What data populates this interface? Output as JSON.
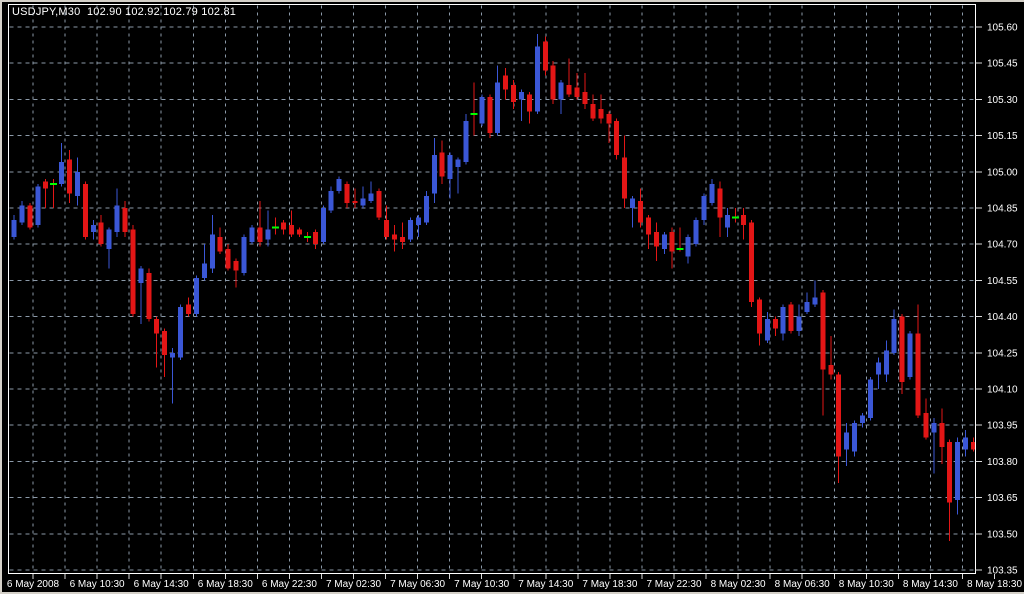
{
  "window": {
    "title": "USDJPY,M30  102.90 102.92 102.79 102.81"
  },
  "chart_data": {
    "type": "candlestick",
    "symbol": "USDJPY",
    "timeframe": "M30",
    "title": "USDJPY,M30  102.90 102.92 102.79 102.81",
    "quote": {
      "open": "102.90",
      "high": "102.92",
      "low": "102.79",
      "close": "102.81"
    },
    "legend_position": "none",
    "grid": true,
    "x_axis": {
      "labels": [
        "6 May 2008",
        "6 May 10:30",
        "6 May 14:30",
        "6 May 18:30",
        "6 May 22:30",
        "7 May 02:30",
        "7 May 06:30",
        "7 May 10:30",
        "7 May 14:30",
        "7 May 18:30",
        "7 May 22:30",
        "8 May 02:30",
        "8 May 06:30",
        "8 May 10:30",
        "8 May 14:30",
        "8 May 18:30"
      ]
    },
    "y_axis": {
      "tick_labels": [
        "105.60",
        "105.45",
        "105.30",
        "105.15",
        "105.00",
        "104.85",
        "104.70",
        "104.55",
        "104.40",
        "104.25",
        "104.10",
        "103.95",
        "103.80",
        "103.65",
        "103.50",
        "103.35"
      ],
      "top_tick": 105.6,
      "tick_step": 0.15,
      "visible_range": [
        103.34,
        105.69
      ]
    },
    "colors": {
      "background": "#000000",
      "bull": "#3B57D6",
      "bear": "#E31616",
      "doji_line": "#00FF00",
      "grid": "#8C9AA9",
      "frame": "#FFFFFF",
      "tick": "#D9D9D9",
      "text": "#FFFFFF",
      "window_border": "#D4D0C8"
    },
    "candles": [
      [
        104.73,
        104.82,
        104.72,
        104.8
      ],
      [
        104.79,
        104.88,
        104.78,
        104.86
      ],
      [
        104.86,
        104.87,
        104.76,
        104.77
      ],
      [
        104.78,
        104.95,
        104.77,
        104.94
      ],
      [
        104.96,
        104.97,
        104.85,
        104.93
      ],
      [
        104.95,
        104.97,
        104.85,
        104.95
      ],
      [
        104.95,
        105.12,
        104.94,
        105.04
      ],
      [
        105.05,
        105.09,
        104.87,
        104.91
      ],
      [
        104.9,
        105.06,
        104.86,
        105.0
      ],
      [
        104.95,
        104.96,
        104.72,
        104.73
      ],
      [
        104.75,
        104.8,
        104.72,
        104.78
      ],
      [
        104.79,
        104.82,
        104.69,
        104.7
      ],
      [
        104.68,
        104.77,
        104.6,
        104.76
      ],
      [
        104.75,
        104.93,
        104.73,
        104.86
      ],
      [
        104.85,
        104.88,
        104.73,
        104.75
      ],
      [
        104.76,
        104.78,
        104.4,
        104.41
      ],
      [
        104.54,
        104.61,
        104.37,
        104.6
      ],
      [
        104.58,
        104.6,
        104.38,
        104.39
      ],
      [
        104.39,
        104.4,
        104.19,
        104.33
      ],
      [
        104.34,
        104.35,
        104.15,
        104.24
      ],
      [
        104.23,
        104.27,
        104.04,
        104.25
      ],
      [
        104.23,
        104.45,
        104.22,
        104.44
      ],
      [
        104.45,
        104.48,
        104.4,
        104.41
      ],
      [
        104.41,
        104.57,
        104.4,
        104.56
      ],
      [
        104.56,
        104.7,
        104.55,
        104.62
      ],
      [
        104.6,
        104.82,
        104.58,
        104.74
      ],
      [
        104.73,
        104.77,
        104.66,
        104.67
      ],
      [
        104.68,
        104.7,
        104.59,
        104.6
      ],
      [
        104.63,
        104.64,
        104.52,
        104.59
      ],
      [
        104.58,
        104.74,
        104.57,
        104.73
      ],
      [
        104.71,
        104.78,
        104.7,
        104.77
      ],
      [
        104.77,
        104.88,
        104.69,
        104.71
      ],
      [
        104.72,
        104.84,
        104.69,
        104.76
      ],
      [
        104.77,
        104.81,
        104.74,
        104.77
      ],
      [
        104.79,
        104.8,
        104.74,
        104.76
      ],
      [
        104.78,
        104.84,
        104.73,
        104.74
      ],
      [
        104.76,
        104.77,
        104.73,
        104.74
      ],
      [
        104.73,
        104.75,
        104.71,
        104.73
      ],
      [
        104.75,
        104.76,
        104.68,
        104.7
      ],
      [
        104.71,
        104.86,
        104.7,
        104.85
      ],
      [
        104.84,
        104.94,
        104.83,
        104.92
      ],
      [
        104.92,
        104.98,
        104.91,
        104.97
      ],
      [
        104.95,
        104.96,
        104.85,
        104.87
      ],
      [
        104.88,
        104.93,
        104.85,
        104.87
      ],
      [
        104.86,
        104.94,
        104.85,
        104.89
      ],
      [
        104.88,
        104.96,
        104.87,
        104.91
      ],
      [
        104.92,
        104.93,
        104.8,
        104.81
      ],
      [
        104.8,
        104.86,
        104.72,
        104.73
      ],
      [
        104.74,
        104.78,
        104.67,
        104.72
      ],
      [
        104.73,
        104.79,
        104.68,
        104.71
      ],
      [
        104.72,
        104.81,
        104.71,
        104.8
      ],
      [
        104.78,
        104.82,
        104.73,
        104.81
      ],
      [
        104.79,
        104.92,
        104.78,
        104.9
      ],
      [
        104.91,
        105.14,
        104.87,
        105.07
      ],
      [
        105.08,
        105.13,
        104.95,
        104.98
      ],
      [
        104.97,
        105.08,
        104.89,
        105.07
      ],
      [
        105.02,
        105.06,
        104.91,
        105.05
      ],
      [
        105.04,
        105.24,
        105.03,
        105.21
      ],
      [
        105.24,
        105.37,
        105.15,
        105.24
      ],
      [
        105.2,
        105.32,
        105.19,
        105.31
      ],
      [
        105.31,
        105.32,
        105.14,
        105.16
      ],
      [
        105.16,
        105.44,
        105.15,
        105.37
      ],
      [
        105.4,
        105.43,
        105.3,
        105.34
      ],
      [
        105.36,
        105.38,
        105.26,
        105.29
      ],
      [
        105.3,
        105.34,
        105.21,
        105.33
      ],
      [
        105.32,
        105.33,
        105.2,
        105.25
      ],
      [
        105.25,
        105.57,
        105.24,
        105.52
      ],
      [
        105.54,
        105.56,
        105.4,
        105.42
      ],
      [
        105.44,
        105.46,
        105.28,
        105.3
      ],
      [
        105.3,
        105.38,
        105.24,
        105.37
      ],
      [
        105.36,
        105.47,
        105.31,
        105.32
      ],
      [
        105.35,
        105.41,
        105.3,
        105.31
      ],
      [
        105.33,
        105.41,
        105.26,
        105.28
      ],
      [
        105.28,
        105.32,
        105.21,
        105.22
      ],
      [
        105.26,
        105.32,
        105.2,
        105.22
      ],
      [
        105.24,
        105.25,
        105.12,
        105.2
      ],
      [
        105.21,
        105.22,
        105.05,
        105.07
      ],
      [
        105.06,
        105.15,
        104.85,
        104.89
      ],
      [
        104.85,
        104.9,
        104.77,
        104.89
      ],
      [
        104.88,
        104.93,
        104.77,
        104.79
      ],
      [
        104.81,
        104.82,
        104.68,
        104.74
      ],
      [
        104.75,
        104.79,
        104.63,
        104.69
      ],
      [
        104.68,
        104.75,
        104.66,
        104.74
      ],
      [
        104.75,
        104.77,
        104.6,
        104.67
      ],
      [
        104.68,
        104.77,
        104.67,
        104.68
      ],
      [
        104.65,
        104.74,
        104.62,
        104.73
      ],
      [
        104.7,
        104.81,
        104.69,
        104.8
      ],
      [
        104.8,
        104.91,
        104.78,
        104.9
      ],
      [
        104.87,
        104.97,
        104.86,
        104.95
      ],
      [
        104.93,
        104.96,
        104.73,
        104.81
      ],
      [
        104.77,
        104.85,
        104.73,
        104.82
      ],
      [
        104.81,
        104.85,
        104.79,
        104.81
      ],
      [
        104.82,
        104.85,
        104.72,
        104.78
      ],
      [
        104.79,
        104.8,
        104.44,
        104.46
      ],
      [
        104.47,
        104.48,
        104.28,
        104.33
      ],
      [
        104.3,
        104.42,
        104.29,
        104.39
      ],
      [
        104.39,
        104.4,
        104.32,
        104.35
      ],
      [
        104.33,
        104.45,
        104.3,
        104.44
      ],
      [
        104.45,
        104.46,
        104.33,
        104.34
      ],
      [
        104.34,
        104.45,
        104.32,
        104.4
      ],
      [
        104.42,
        104.5,
        104.41,
        104.46
      ],
      [
        104.45,
        104.55,
        104.44,
        104.48
      ],
      [
        104.5,
        104.51,
        103.99,
        104.18
      ],
      [
        104.2,
        104.32,
        104.14,
        104.16
      ],
      [
        104.16,
        104.17,
        103.71,
        103.82
      ],
      [
        103.85,
        103.96,
        103.78,
        103.92
      ],
      [
        103.84,
        103.97,
        103.82,
        103.96
      ],
      [
        103.96,
        104.0,
        103.94,
        103.99
      ],
      [
        103.98,
        104.15,
        103.97,
        104.14
      ],
      [
        104.16,
        104.23,
        104.1,
        104.21
      ],
      [
        104.16,
        104.3,
        104.13,
        104.26
      ],
      [
        104.25,
        104.43,
        104.24,
        104.39
      ],
      [
        104.4,
        104.41,
        104.08,
        104.13
      ],
      [
        104.15,
        104.34,
        104.14,
        104.33
      ],
      [
        104.33,
        104.45,
        103.98,
        103.99
      ],
      [
        104.0,
        104.06,
        103.89,
        103.9
      ],
      [
        103.92,
        103.98,
        103.75,
        103.96
      ],
      [
        103.96,
        104.02,
        103.79,
        103.86
      ],
      [
        103.88,
        103.89,
        103.47,
        103.63
      ],
      [
        103.64,
        103.9,
        103.58,
        103.88
      ],
      [
        103.85,
        103.93,
        103.82,
        103.9
      ],
      [
        103.88,
        103.9,
        103.84,
        103.85
      ]
    ]
  }
}
